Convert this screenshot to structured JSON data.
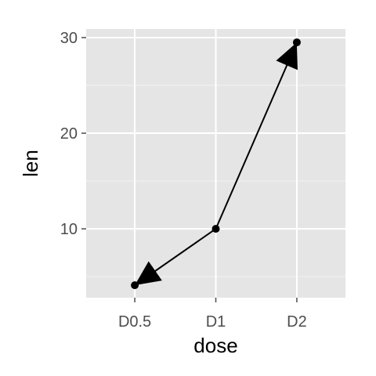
{
  "chart_data": {
    "type": "line",
    "categories": [
      "D0.5",
      "D1",
      "D2"
    ],
    "values": [
      4.1,
      10.0,
      29.5
    ],
    "xlabel": "dose",
    "ylabel": "len",
    "ylim": [
      2.8,
      30.9
    ],
    "yticks": [
      10,
      20,
      30
    ],
    "grid": true,
    "arrows": "both-ends",
    "colors": {
      "panel": "#e5e5e5",
      "grid_major": "#ffffff",
      "grid_minor": "#f2f2f2",
      "line": "#000000",
      "tick_label": "#4d4d4d"
    }
  }
}
